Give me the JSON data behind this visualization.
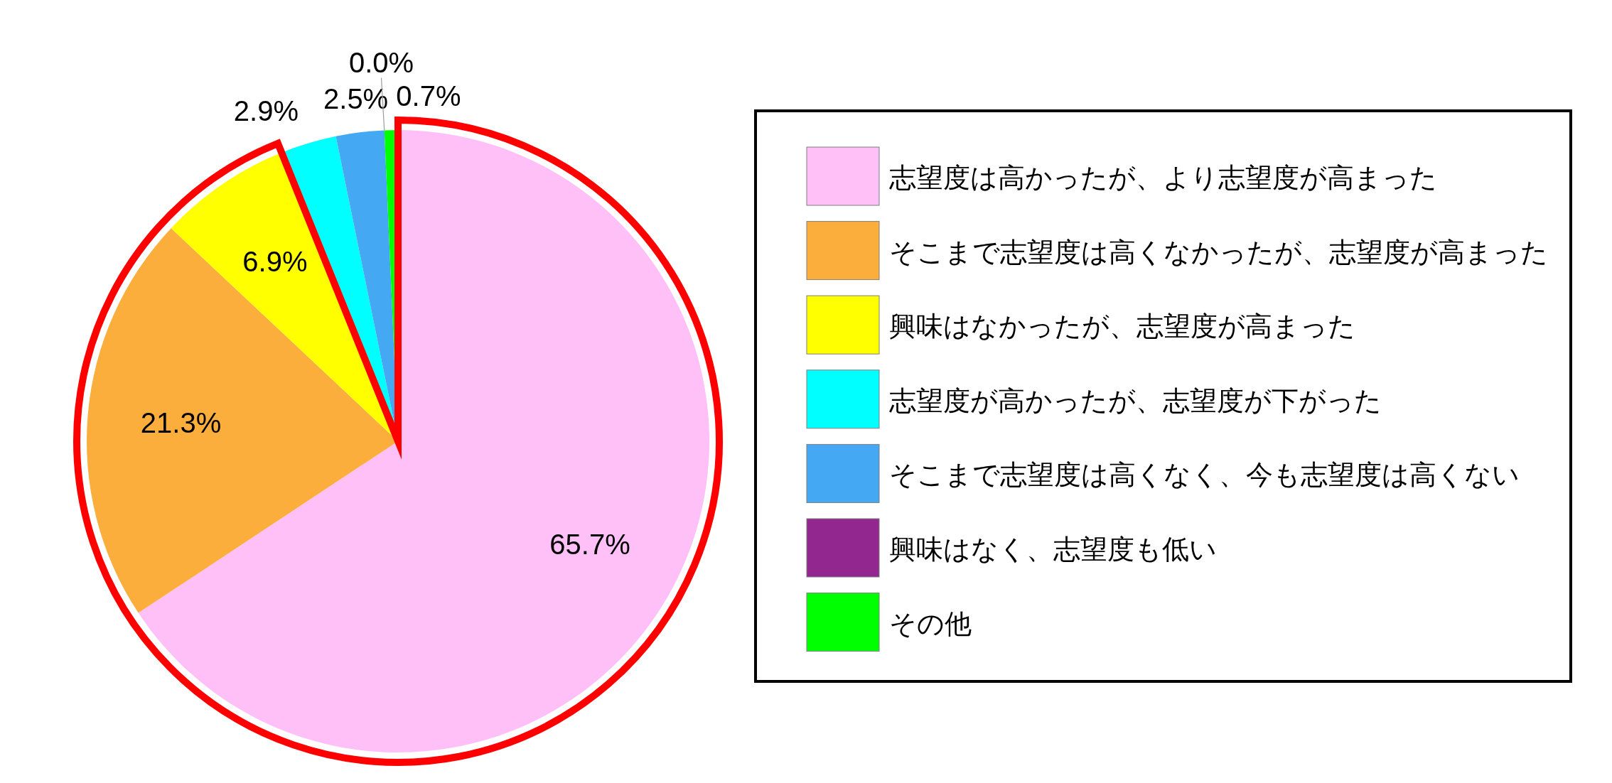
{
  "chart_data": {
    "type": "pie",
    "categories": [
      "志望度は高かったが、より志望度が高まった",
      "そこまで志望度は高くなかったが、志望度が高まった",
      "興味はなかったが、志望度が高まった",
      "志望度が高かったが、志望度が下がった",
      "そこまで志望度は高くなく、今も志望度は高くない",
      "興味はなく、志望度も低い",
      "その他"
    ],
    "values": [
      65.7,
      21.3,
      6.9,
      2.9,
      2.5,
      0.0,
      0.7
    ],
    "colors": [
      "#ffbff7",
      "#fbae3c",
      "#ffff00",
      "#00ffff",
      "#44a8f2",
      "#92278f",
      "#00ff00"
    ],
    "value_labels": [
      "65.7%",
      "21.3%",
      "6.9%",
      "2.9%",
      "2.5%",
      "0.0%",
      "0.7%"
    ],
    "legend": "right"
  }
}
